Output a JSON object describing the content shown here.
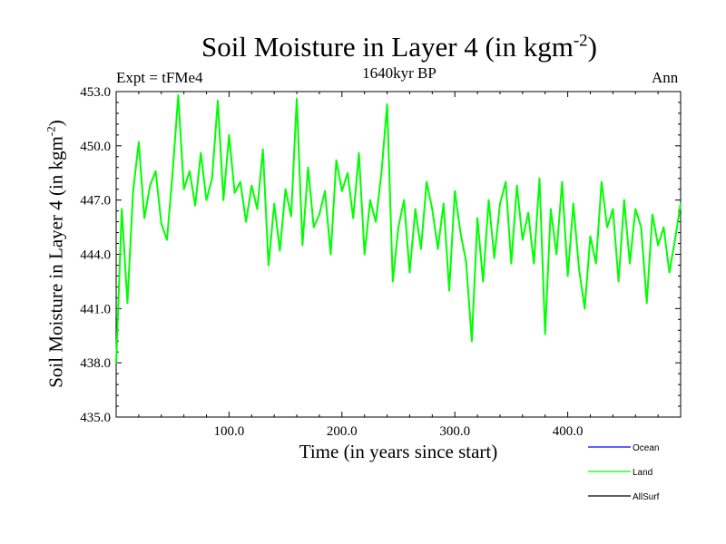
{
  "chart_data": {
    "type": "line",
    "title": "Soil Moisture in Layer 4 (in kgm",
    "title_sup": "-2",
    "title_close": ")",
    "subtitle": "1640kyr BP",
    "left_label": "Expt = tFMe4",
    "right_label": "Ann",
    "xlabel": "Time (in years since start)",
    "ylabel": "Soil Moisture in Layer 4 (in kgm",
    "ylabel_sup": "-2",
    "ylabel_close": ")",
    "xlim": [
      0,
      500
    ],
    "ylim": [
      435.0,
      453.0
    ],
    "x_ticks": [
      100,
      200,
      300,
      400
    ],
    "x_tick_labels": [
      "100.0",
      "200.0",
      "300.0",
      "400.0"
    ],
    "y_ticks": [
      435,
      438,
      441,
      444,
      447,
      450,
      453
    ],
    "y_tick_labels": [
      "435.0",
      "438.0",
      "441.0",
      "444.0",
      "447.0",
      "450.0",
      "453.0"
    ],
    "series": [
      {
        "name": "Land",
        "color": "#00ff00",
        "x": [
          0,
          5,
          10,
          15,
          20,
          25,
          30,
          35,
          40,
          45,
          50,
          55,
          60,
          65,
          70,
          75,
          80,
          85,
          90,
          95,
          100,
          105,
          110,
          115,
          120,
          125,
          130,
          135,
          140,
          145,
          150,
          155,
          160,
          165,
          170,
          175,
          180,
          185,
          190,
          195,
          200,
          205,
          210,
          215,
          220,
          225,
          230,
          235,
          240,
          245,
          250,
          255,
          260,
          265,
          270,
          275,
          280,
          285,
          290,
          295,
          300,
          305,
          310,
          315,
          320,
          325,
          330,
          335,
          340,
          345,
          350,
          355,
          360,
          365,
          370,
          375,
          380,
          385,
          390,
          395,
          400,
          405,
          410,
          415,
          420,
          425,
          430,
          435,
          440,
          445,
          450,
          455,
          460,
          465,
          470,
          475,
          480,
          485,
          490,
          495,
          500
        ],
        "values": [
          438.0,
          446.5,
          441.3,
          447.5,
          450.2,
          446.0,
          447.8,
          448.6,
          445.7,
          444.8,
          448.5,
          452.8,
          447.6,
          448.6,
          446.7,
          449.6,
          447.0,
          448.2,
          452.5,
          447.0,
          450.6,
          447.4,
          448.0,
          445.8,
          447.8,
          446.5,
          449.8,
          443.4,
          446.8,
          444.2,
          447.6,
          446.1,
          452.6,
          444.5,
          448.8,
          445.5,
          446.2,
          447.5,
          444.0,
          449.2,
          447.5,
          448.5,
          446.0,
          449.6,
          444.0,
          447.0,
          445.8,
          448.5,
          452.3,
          442.5,
          445.5,
          447.0,
          443.0,
          446.5,
          444.3,
          448.0,
          446.5,
          444.3,
          446.8,
          442.0,
          447.5,
          445.2,
          443.6,
          439.2,
          446.0,
          442.5,
          447.0,
          443.8,
          446.8,
          448.0,
          443.5,
          447.8,
          444.8,
          446.3,
          443.5,
          448.2,
          439.6,
          446.5,
          444.0,
          448.0,
          442.8,
          446.8,
          443.2,
          441.0,
          445.0,
          443.5,
          448.0,
          445.5,
          446.5,
          442.5,
          447.0,
          443.5,
          446.5,
          445.5,
          441.3,
          446.2,
          444.5,
          445.5,
          443.0,
          444.8,
          446.8
        ]
      }
    ],
    "legend": [
      {
        "name": "Ocean",
        "color": "#0000ff"
      },
      {
        "name": "Land",
        "color": "#00ff00"
      },
      {
        "name": "AllSurf",
        "color": "#000000"
      }
    ],
    "grid": false,
    "legend_position": "bottom-right"
  }
}
